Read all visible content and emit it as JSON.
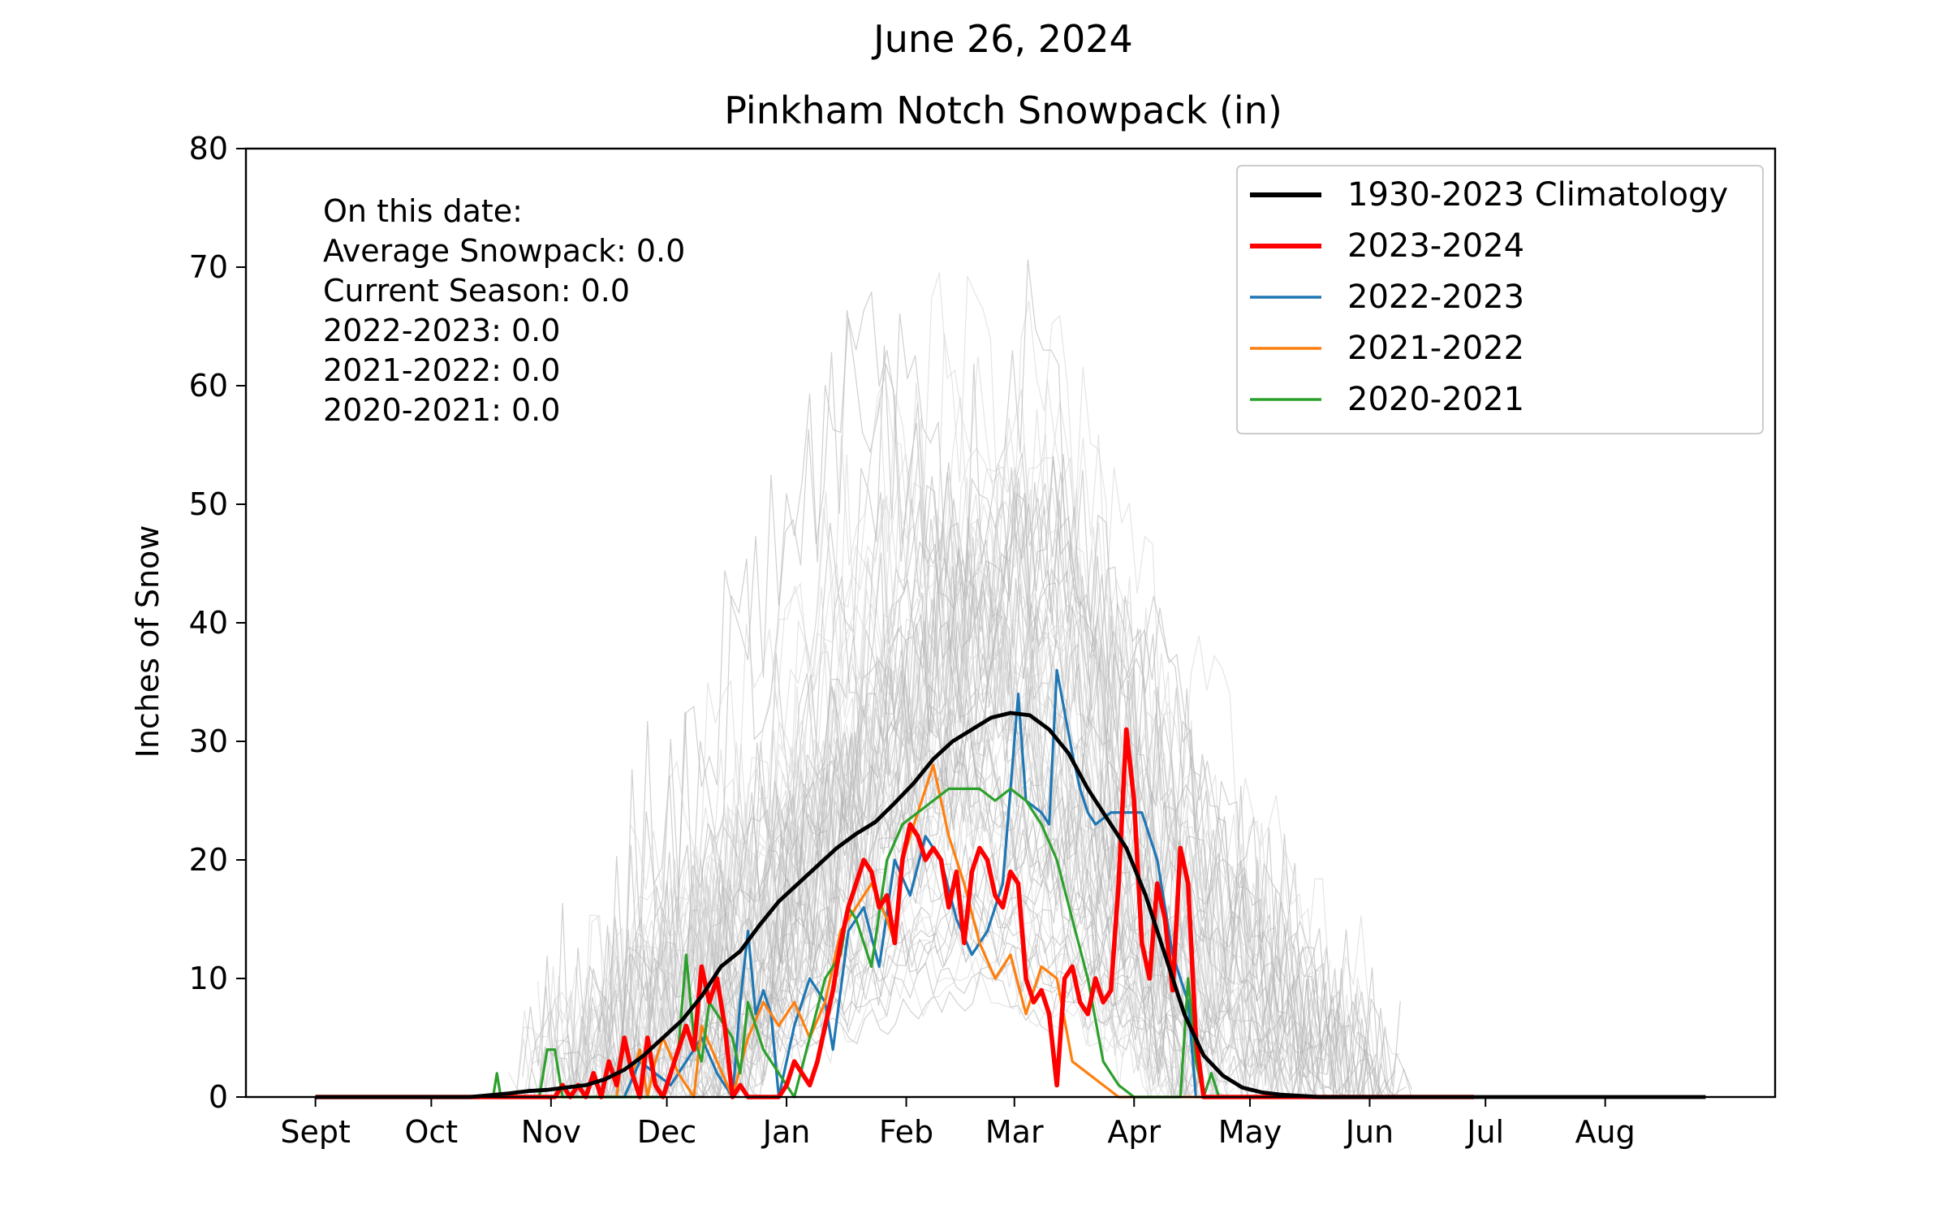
{
  "chart_data": {
    "type": "line",
    "suptitle": "June 26, 2024",
    "title": "Pinkham Notch Snowpack (in)",
    "xlabel": "",
    "ylabel": "Inches of Snow",
    "xlim": [
      -18,
      378
    ],
    "ylim": [
      0,
      80
    ],
    "yticks": [
      0,
      10,
      20,
      30,
      40,
      50,
      60,
      70,
      80
    ],
    "month_ticks": [
      {
        "label": "Sept",
        "day": 0
      },
      {
        "label": "Oct",
        "day": 30
      },
      {
        "label": "Nov",
        "day": 61
      },
      {
        "label": "Dec",
        "day": 91
      },
      {
        "label": "Jan",
        "day": 122
      },
      {
        "label": "Feb",
        "day": 153
      },
      {
        "label": "Mar",
        "day": 181
      },
      {
        "label": "Apr",
        "day": 212
      },
      {
        "label": "May",
        "day": 242
      },
      {
        "label": "Jun",
        "day": 273
      },
      {
        "label": "Jul",
        "day": 303
      },
      {
        "label": "Aug",
        "day": 334
      }
    ],
    "grid": false,
    "legend_position": "top-right",
    "annotation": {
      "lines": [
        "On this date:",
        "Average Snowpack: 0.0",
        "Current Season: 0.0",
        "2022-2023: 0.0",
        "2021-2022: 0.0",
        "2020-2021: 0.0"
      ]
    },
    "series": [
      {
        "name": "1930-2023 Climatology",
        "color": "#000000",
        "x": [
          0,
          40,
          50,
          55,
          60,
          65,
          70,
          75,
          80,
          85,
          90,
          95,
          100,
          105,
          110,
          115,
          120,
          125,
          130,
          135,
          140,
          145,
          150,
          155,
          160,
          165,
          170,
          175,
          180,
          185,
          190,
          195,
          200,
          205,
          210,
          215,
          220,
          225,
          230,
          235,
          240,
          245,
          250,
          255,
          260,
          265,
          270,
          300,
          360
        ],
        "y": [
          0,
          0,
          0.3,
          0.5,
          0.6,
          0.8,
          1.0,
          1.5,
          2.3,
          3.5,
          5.0,
          6.5,
          8.5,
          11,
          12.3,
          14.5,
          16.5,
          18,
          19.5,
          21,
          22.2,
          23.2,
          24.8,
          26.5,
          28.5,
          30,
          31,
          32,
          32.4,
          32.2,
          31,
          29,
          26,
          23.5,
          21,
          17,
          12,
          7,
          3.5,
          1.8,
          0.8,
          0.4,
          0.2,
          0.1,
          0,
          0,
          0,
          0,
          0
        ],
        "width": 3
      },
      {
        "name": "2023-2024",
        "color": "#ff0000",
        "x": [
          0,
          62,
          64,
          66,
          68,
          70,
          72,
          74,
          76,
          78,
          80,
          82,
          84,
          86,
          88,
          90,
          92,
          94,
          96,
          98,
          100,
          102,
          104,
          106,
          108,
          110,
          112,
          114,
          116,
          118,
          120,
          122,
          124,
          126,
          128,
          130,
          132,
          134,
          136,
          138,
          140,
          142,
          144,
          146,
          148,
          150,
          152,
          154,
          156,
          158,
          160,
          162,
          164,
          166,
          168,
          170,
          172,
          174,
          176,
          178,
          180,
          182,
          184,
          186,
          188,
          190,
          192,
          194,
          196,
          198,
          200,
          202,
          204,
          206,
          208,
          210,
          212,
          214,
          216,
          218,
          220,
          222,
          224,
          226,
          228,
          230,
          232,
          240,
          300
        ],
        "y": [
          0,
          0,
          1,
          0,
          1,
          0,
          2,
          0,
          3,
          1,
          5,
          2,
          0,
          5,
          1,
          0,
          2,
          4,
          6,
          4,
          11,
          8,
          10,
          6,
          0,
          1,
          0,
          0,
          0,
          0,
          0,
          1,
          3,
          2,
          1,
          3,
          6,
          9,
          13,
          16,
          18,
          20,
          19,
          16,
          17,
          13,
          20,
          23,
          22,
          20,
          21,
          20,
          16,
          19,
          13,
          19,
          21,
          20,
          17,
          16,
          19,
          18,
          10,
          8,
          9,
          7,
          1,
          10,
          11,
          8,
          7,
          10,
          8,
          9,
          18,
          31,
          25,
          13,
          10,
          18,
          15,
          9,
          21,
          18,
          5,
          0,
          0,
          0,
          0
        ],
        "width": 3.5
      },
      {
        "name": "2022-2023",
        "color": "#1f77b4",
        "x": [
          0,
          80,
          84,
          88,
          92,
          96,
          100,
          104,
          108,
          110,
          112,
          114,
          116,
          118,
          120,
          124,
          128,
          132,
          134,
          138,
          142,
          146,
          150,
          154,
          158,
          162,
          166,
          170,
          174,
          178,
          182,
          184,
          188,
          190,
          192,
          196,
          198,
          200,
          202,
          206,
          210,
          214,
          218,
          222,
          226,
          228,
          230,
          232,
          240,
          300
        ],
        "y": [
          0,
          0,
          3,
          2,
          1,
          3,
          5,
          2,
          0,
          8,
          14,
          7,
          9,
          7,
          0,
          6,
          10,
          8,
          4,
          14,
          16,
          11,
          20,
          17,
          22,
          20,
          15,
          12,
          14,
          18,
          34,
          25,
          24,
          23,
          36,
          29,
          26,
          24,
          23,
          24,
          24,
          24,
          20,
          12,
          8,
          0,
          0,
          0,
          0,
          0
        ],
        "width": 2
      },
      {
        "name": "2021-2022",
        "color": "#ff7f0e",
        "x": [
          0,
          78,
          80,
          82,
          84,
          86,
          88,
          90,
          94,
          98,
          100,
          104,
          108,
          112,
          116,
          120,
          124,
          128,
          132,
          136,
          140,
          144,
          148,
          150,
          152,
          156,
          160,
          162,
          164,
          168,
          172,
          176,
          180,
          184,
          188,
          192,
          196,
          200,
          204,
          208,
          240,
          300
        ],
        "y": [
          0,
          0,
          5,
          2,
          4,
          0,
          3,
          5,
          2,
          0,
          6,
          3,
          0,
          5,
          8,
          6,
          8,
          5,
          8,
          14,
          16,
          18,
          15,
          13,
          20,
          24,
          28,
          25,
          22,
          18,
          13,
          10,
          12,
          7,
          11,
          10,
          3,
          2,
          1,
          0,
          0,
          0
        ],
        "width": 2
      },
      {
        "name": "2020-2021",
        "color": "#2ca02c",
        "x": [
          0,
          46,
          47,
          48,
          58,
          60,
          62,
          64,
          66,
          68,
          80,
          90,
          94,
          96,
          98,
          100,
          102,
          104,
          108,
          110,
          112,
          116,
          120,
          124,
          128,
          132,
          136,
          138,
          140,
          144,
          148,
          152,
          156,
          160,
          164,
          168,
          172,
          176,
          180,
          184,
          188,
          192,
          196,
          200,
          204,
          208,
          212,
          216,
          218,
          220,
          222,
          224,
          226,
          228,
          230,
          232,
          234,
          236,
          240,
          300
        ],
        "y": [
          0,
          0,
          2,
          0,
          0,
          4,
          4,
          0,
          0,
          0,
          0,
          0,
          4,
          12,
          5,
          3,
          8,
          7,
          5,
          2,
          8,
          4,
          2,
          0,
          5,
          10,
          12,
          16,
          15,
          11,
          20,
          23,
          24,
          25,
          26,
          26,
          26,
          25,
          26,
          25,
          23,
          20,
          15,
          10,
          3,
          1,
          0,
          0,
          0,
          0,
          0,
          0,
          10,
          3,
          0,
          2,
          0,
          0,
          0,
          0
        ],
        "width": 2
      }
    ]
  }
}
